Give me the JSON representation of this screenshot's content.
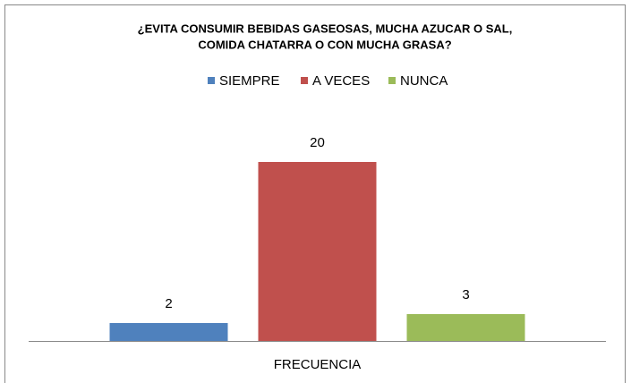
{
  "chart_data": {
    "type": "bar",
    "title": [
      "¿EVITA CONSUMIR BEBIDAS GASEOSAS, MUCHA AZUCAR O SAL,",
      "COMIDA CHATARRA O CON MUCHA GRASA?"
    ],
    "categories": [
      "FRECUENCIA"
    ],
    "series": [
      {
        "name": "SIEMPRE",
        "color": "#4f81bd",
        "values": [
          2
        ]
      },
      {
        "name": "A VECES",
        "color": "#c0504d",
        "values": [
          20
        ]
      },
      {
        "name": "NUNCA",
        "color": "#9bbb59",
        "values": [
          3
        ]
      }
    ],
    "legend": "top"
  }
}
